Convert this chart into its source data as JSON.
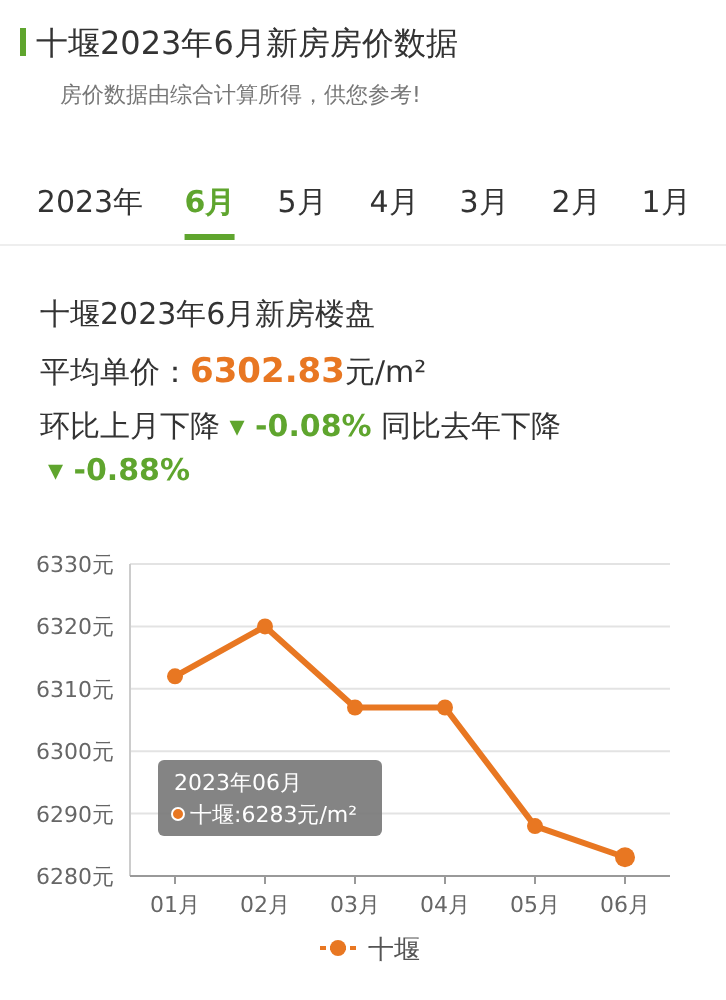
{
  "chart_data": {
    "type": "line",
    "title": "十堰2023年6月新房房价数据",
    "subtitle": "房价数据由综合计算所得，供您参考!",
    "annotations": [
      "2023年",
      "6月",
      "5月",
      "4月",
      "3月",
      "2月",
      "1月",
      "十堰2023年6月新房楼盘",
      "平均单价：",
      "6302.83",
      "元/m²",
      "环比上月下降",
      "▾ -0.08%",
      "同比去年下降",
      "▾ -0.88%",
      "2023年06月",
      "十堰:6283元/m²"
    ],
    "categories": [
      "01月",
      "02月",
      "03月",
      "04月",
      "05月",
      "06月"
    ],
    "series": [
      {
        "name": "十堰",
        "color": "#e87722",
        "values": [
          6312,
          6320,
          6307,
          6307,
          6288,
          6283
        ]
      }
    ],
    "ylim": [
      6280,
      6330
    ],
    "yticks": [
      {
        "value": 6280,
        "label": "6280元"
      },
      {
        "value": 6290,
        "label": "6290元"
      },
      {
        "value": 6300,
        "label": "6300元"
      },
      {
        "value": 6310,
        "label": "6310元"
      },
      {
        "value": 6320,
        "label": "6320元"
      },
      {
        "value": 6330,
        "label": "6330元"
      }
    ],
    "grid": "y",
    "legend": "bottom",
    "marker": "circle",
    "line_style": "solid"
  }
}
